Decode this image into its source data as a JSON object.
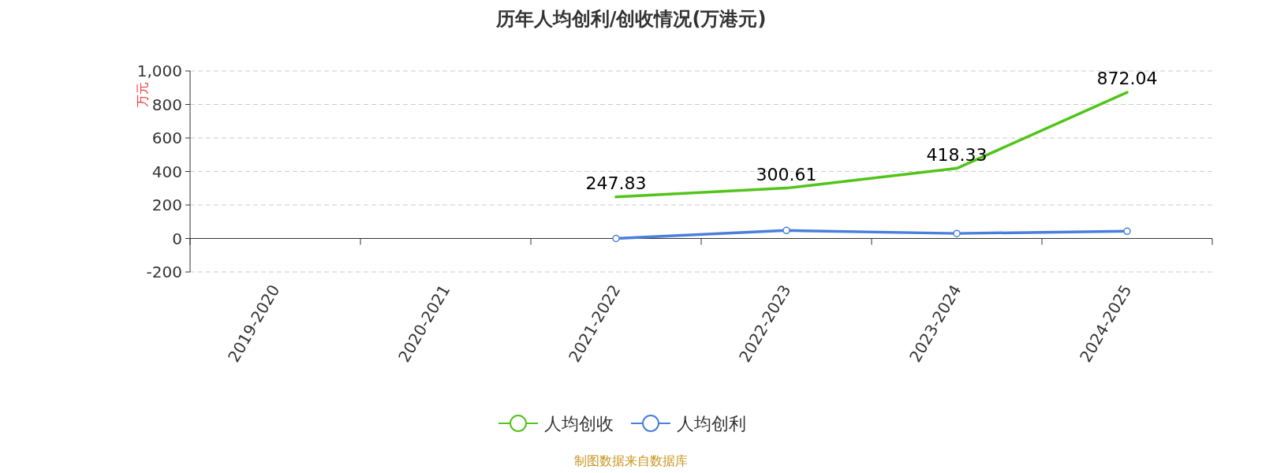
{
  "chart_data": {
    "type": "line",
    "title": "历年人均创利/创收情况(万港元)",
    "ylabel": "万元",
    "categories": [
      "2019-2020",
      "2020-2021",
      "2021-2022",
      "2022-2023",
      "2023-2024",
      "2024-2025"
    ],
    "series": [
      {
        "name": "人均创收",
        "color": "#52c41a",
        "marker": "none",
        "values": [
          null,
          null,
          247.83,
          300.61,
          418.33,
          872.04
        ],
        "value_labels": [
          null,
          null,
          "247.83",
          "300.61",
          "418.33",
          "872.04"
        ]
      },
      {
        "name": "人均创利",
        "color": "#4a7fdc",
        "marker": "circle",
        "values": [
          null,
          null,
          0,
          48,
          30,
          43
        ]
      }
    ],
    "ylim": [
      -200,
      1000
    ],
    "yticks": [
      -200,
      0,
      200,
      400,
      600,
      800,
      {
        "value": 1000,
        "label": "1,000"
      }
    ],
    "grid": "y",
    "legend": "bottom",
    "annotations": [
      "制图数据来自数据库"
    ]
  }
}
